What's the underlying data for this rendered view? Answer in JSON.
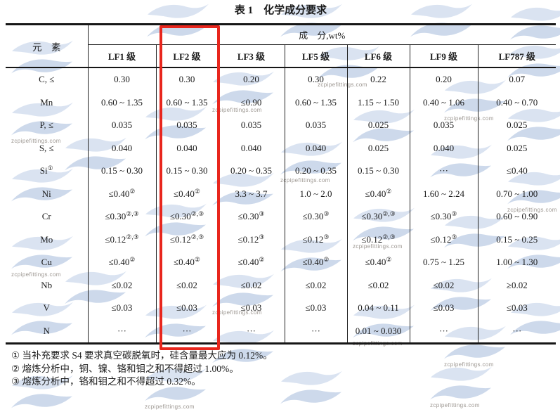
{
  "title": "表 1　化学成分要求",
  "watermark_text": "zcpipefittings.com",
  "highlight_color": "#e8261d",
  "header": {
    "element_label": "元　素",
    "composition_label": "成　分,wt%",
    "grades": [
      "LF1 级",
      "LF2 级",
      "LF3 级",
      "LF5 级",
      "LF6 级",
      "LF9 级",
      "LF787 级"
    ]
  },
  "rows": [
    {
      "element": "C, ≤",
      "values": [
        "0.30",
        "0.30",
        "0.20",
        "0.30",
        "0.22",
        "0.20",
        "0.07"
      ]
    },
    {
      "element": "Mn",
      "values": [
        "0.60 ~ 1.35",
        "0.60 ~ 1.35",
        "≤0.90",
        "0.60 ~ 1.35",
        "1.15 ~ 1.50",
        "0.40 ~ 1.06",
        "0.40 ~ 0.70"
      ]
    },
    {
      "element": "P, ≤",
      "values": [
        "0.035",
        "0.035",
        "0.035",
        "0.035",
        "0.025",
        "0.035",
        "0.025"
      ]
    },
    {
      "element": "S, ≤",
      "values": [
        "0.040",
        "0.040",
        "0.040",
        "0.040",
        "0.025",
        "0.040",
        "0.025"
      ]
    },
    {
      "element": "Si^①",
      "values": [
        "0.15 ~ 0.30",
        "0.15 ~ 0.30",
        "0.20 ~ 0.35",
        "0.20 ~ 0.35",
        "0.15 ~ 0.30",
        "···",
        "≤0.40"
      ]
    },
    {
      "element": "Ni",
      "values": [
        "≤0.40^②",
        "≤0.40^②",
        "3.3 ~ 3.7",
        "1.0 ~ 2.0",
        "≤0.40^②",
        "1.60 ~ 2.24",
        "0.70 ~ 1.00"
      ]
    },
    {
      "element": "Cr",
      "values": [
        "≤0.30^②,③",
        "≤0.30^②,③",
        "≤0.30^③",
        "≤0.30^③",
        "≤0.30^②,③",
        "≤0.30^③",
        "0.60 ~ 0.90"
      ]
    },
    {
      "element": "Mo",
      "values": [
        "≤0.12^②,③",
        "≤0.12^②,③",
        "≤0.12^③",
        "≤0.12^③",
        "≤0.12^②,③",
        "≤0.12^③",
        "0.15 ~ 0.25"
      ]
    },
    {
      "element": "Cu",
      "values": [
        "≤0.40^②",
        "≤0.40^②",
        "≤0.40^②",
        "≤0.40^②",
        "≤0.40^②",
        "0.75 ~ 1.25",
        "1.00 ~ 1.30"
      ]
    },
    {
      "element": "Nb",
      "values": [
        "≤0.02",
        "≤0.02",
        "≤0.02",
        "≤0.02",
        "≤0.02",
        "≤0.02",
        "≥0.02"
      ]
    },
    {
      "element": "V",
      "values": [
        "≤0.03",
        "≤0.03",
        "≤0.03",
        "≤0.03",
        "0.04 ~ 0.11",
        "≤0.03",
        "≤0.03"
      ]
    },
    {
      "element": "N",
      "values": [
        "···",
        "···",
        "···",
        "···",
        "0.01 ~ 0.030",
        "···",
        "···"
      ]
    }
  ],
  "footnotes": [
    "① 当补充要求 S4 要求真空碳脱氧时，硅含量最大应为 0.12%。",
    "② 熔炼分析中，铜、镍、铬和钼之和不得超过 1.00%。",
    "③ 熔炼分析中，铬和钼之和不得超过 0.32%。"
  ]
}
